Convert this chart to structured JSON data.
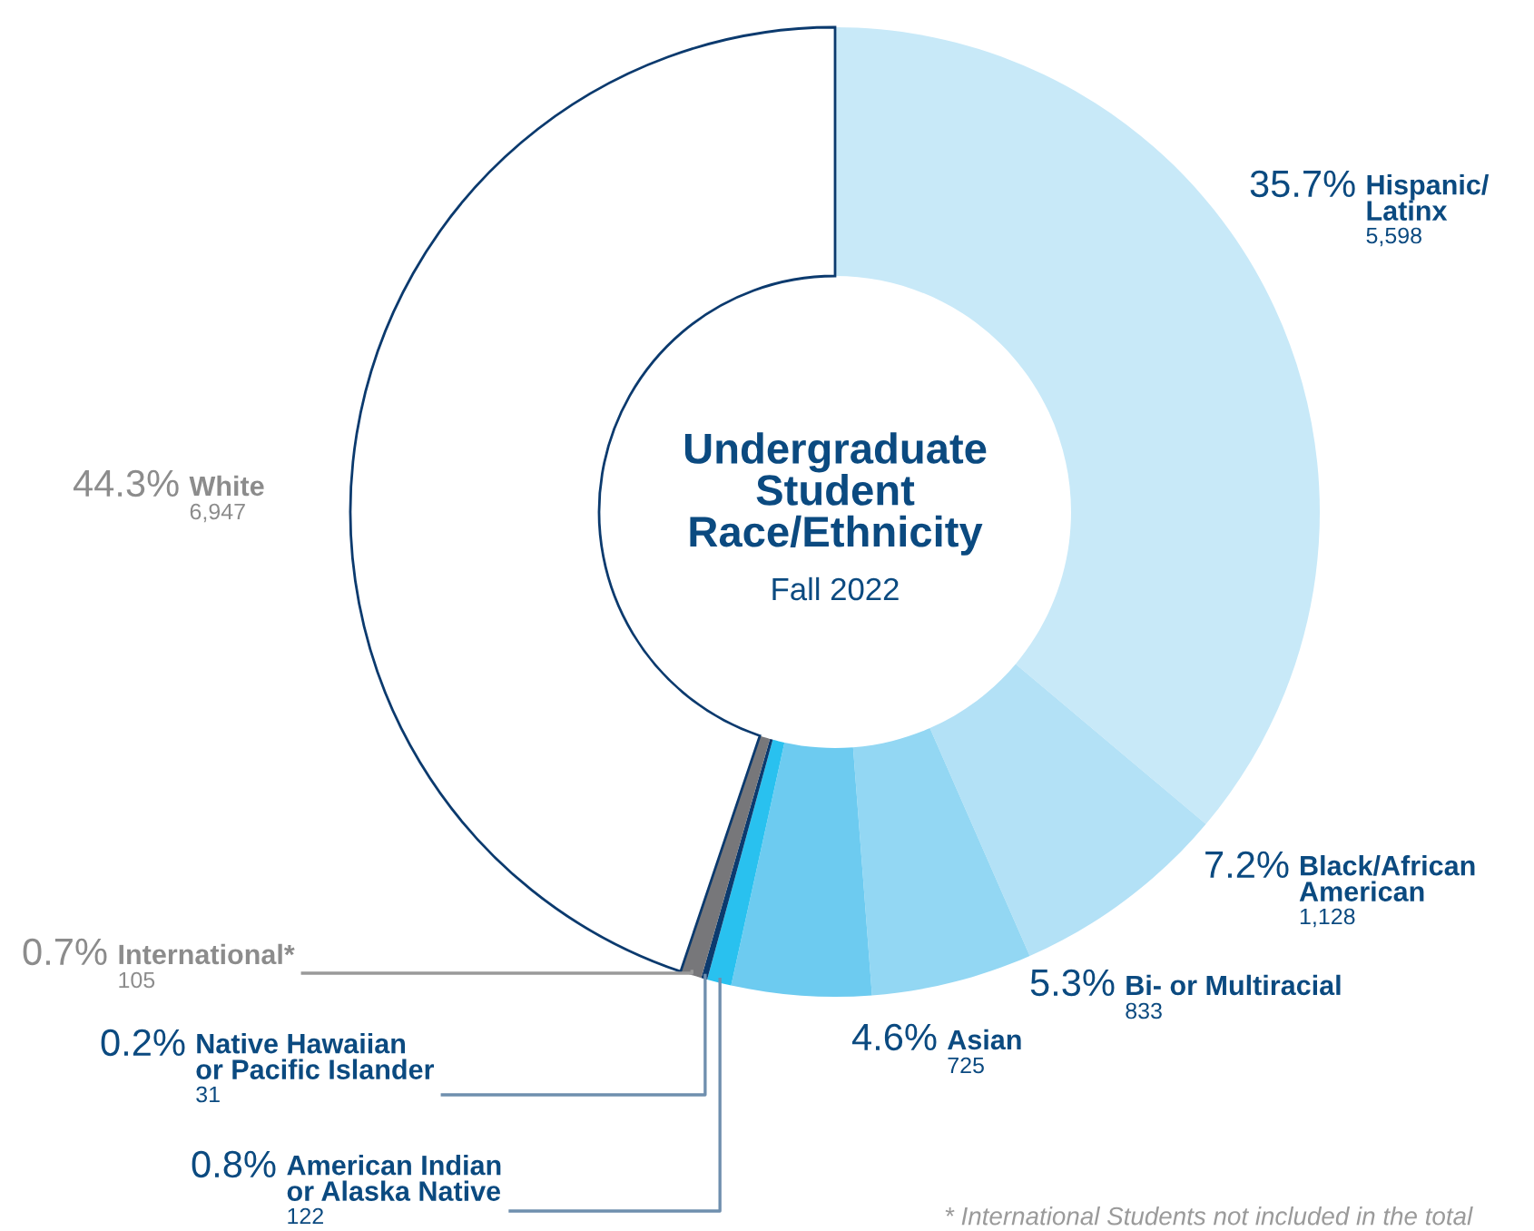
{
  "chart_data": {
    "type": "donut",
    "title": "Undergraduate\nStudent\nRace/Ethnicity",
    "subtitle": "Fall 2022",
    "categories": [
      "Hispanic/\nLatinx",
      "Black/African\nAmerican",
      "Bi- or Multiracial",
      "Asian",
      "American Indian\nor Alaska Native",
      "Native Hawaiian\nor Pacific Islander",
      "International*",
      "White"
    ],
    "values": [
      35.7,
      7.2,
      5.3,
      4.6,
      0.8,
      0.2,
      0.7,
      44.3
    ],
    "colors": [
      "#c8e9f8",
      "#b3e1f6",
      "#93d7f3",
      "#6dcbf0",
      "#29c1ef",
      "#0b3a6e",
      "#77777a",
      "#ffffff"
    ],
    "value_labels": [
      "35.7%",
      "7.2%",
      "5.3%",
      "4.6%",
      "0.8%",
      "0.2%",
      "0.7%",
      "44.3%"
    ],
    "annotations": [
      {
        "text": "5,598",
        "x": "Hispanic/\nLatinx"
      },
      {
        "text": "1,128",
        "x": "Black/African\nAmerican"
      },
      {
        "text": "833",
        "x": "Bi- or Multiracial"
      },
      {
        "text": "725",
        "x": "Asian"
      },
      {
        "text": "122",
        "x": "American Indian\nor Alaska Native"
      },
      {
        "text": "31",
        "x": "Native Hawaiian\nor Pacific Islander"
      },
      {
        "text": "105",
        "x": "International*"
      },
      {
        "text": "6,947",
        "x": "White"
      },
      "* International Students not included in the total"
    ]
  }
}
